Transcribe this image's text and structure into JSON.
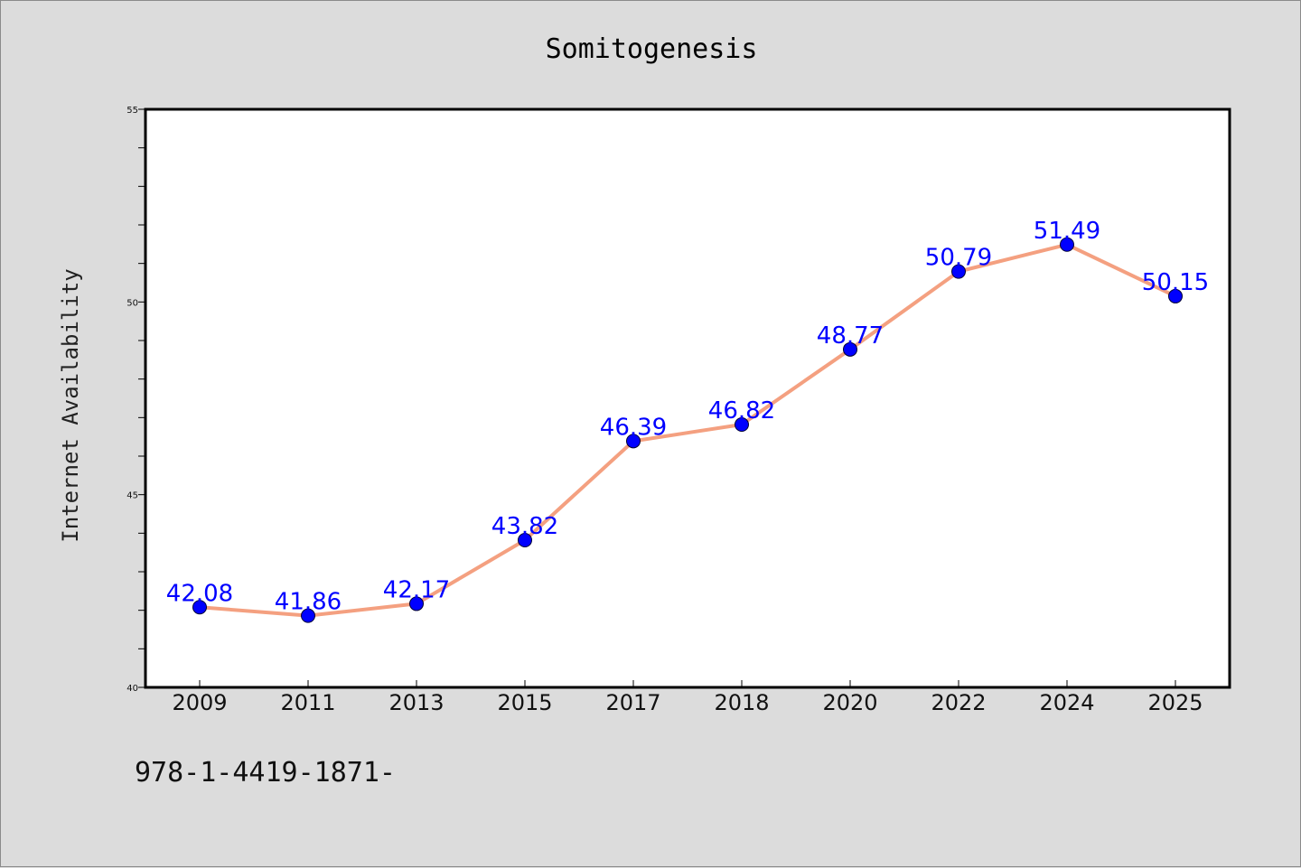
{
  "colors": {
    "background": "#dcdcdc",
    "plot_background": "#ffffff",
    "line": "#f4a080",
    "marker": "#0000ff",
    "data_label": "#0000ff"
  },
  "footer_text": "978-1-4419-1871-",
  "chart_data": {
    "type": "line",
    "title": "Somitogenesis",
    "xlabel": "",
    "ylabel": "Internet Availability",
    "categories": [
      "2009",
      "2011",
      "2013",
      "2015",
      "2017",
      "2018",
      "2020",
      "2022",
      "2024",
      "2025"
    ],
    "series": [
      {
        "values": [
          42.08,
          41.86,
          42.17,
          43.82,
          46.39,
          46.82,
          48.77,
          50.79,
          51.49,
          50.15
        ],
        "labels": [
          "42.08",
          "41.86",
          "42.17",
          "43.82",
          "46.39",
          "46.82",
          "48.77",
          "50.79",
          "51.49",
          "50.15"
        ]
      }
    ],
    "ylim": [
      40,
      55
    ],
    "yticks": [
      "40",
      "45",
      "50",
      "55"
    ],
    "grid": false,
    "legend": "none"
  }
}
